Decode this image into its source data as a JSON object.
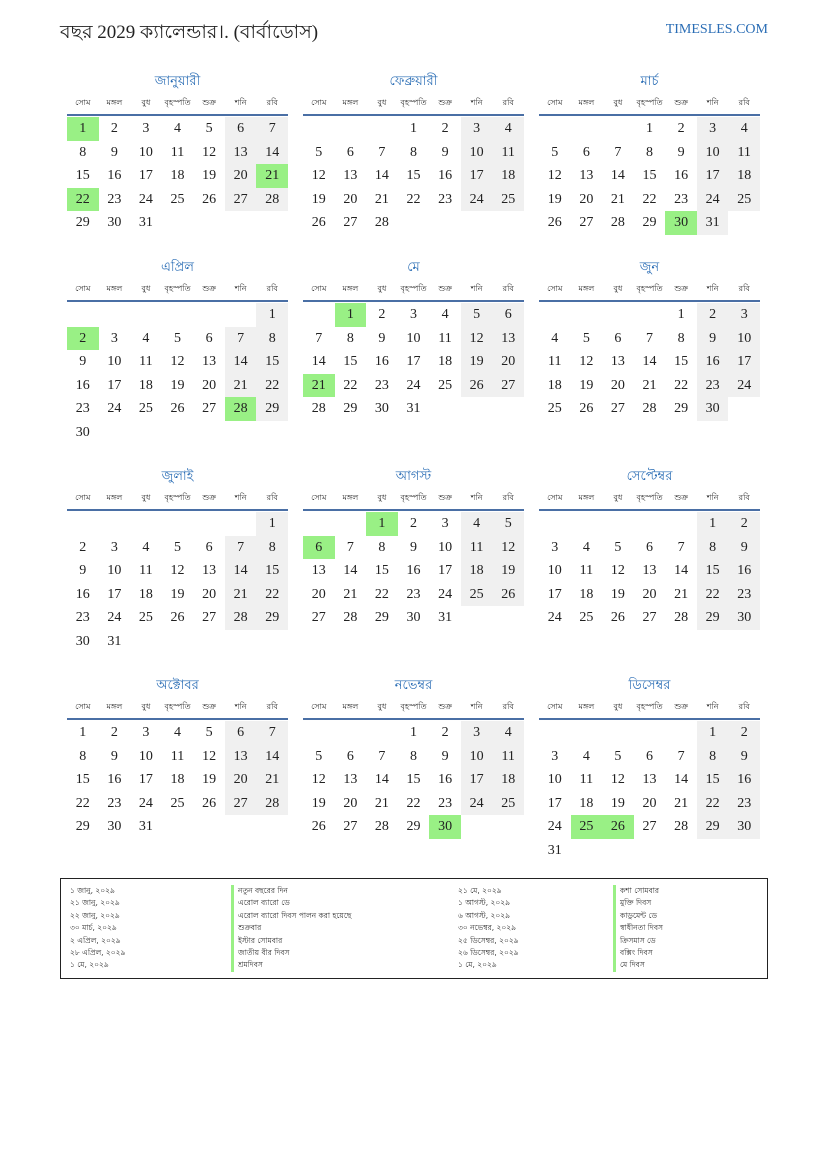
{
  "header": {
    "title": "বছর 2029 ক্যালেন্ডার।. (বার্বাডোস)",
    "site": "TIMESLES.COM"
  },
  "year": 2029,
  "weekdays": [
    "সোম",
    "মঙ্গল",
    "বুধ",
    "বৃহস্পতি",
    "শুক্র",
    "শনি",
    "রবি"
  ],
  "months": [
    "জানুয়ারী",
    "ফেব্রুয়ারী",
    "মার্চ",
    "এপ্রিল",
    "মে",
    "জুন",
    "জুলাই",
    "আগস্ট",
    "সেপ্টেম্বর",
    "অক্টোবর",
    "নভেম্বর",
    "ডিসেম্বর"
  ],
  "colors": {
    "accent": "#2a6db5",
    "holiday": "#99f085",
    "weekend": "#f0f0f0"
  },
  "holiday_days": {
    "1": [
      1,
      21,
      22
    ],
    "3": [
      30
    ],
    "4": [
      2,
      28
    ],
    "5": [
      1,
      21
    ],
    "8": [
      1,
      6
    ],
    "11": [
      30
    ],
    "12": [
      25,
      26
    ]
  },
  "holidays": [
    {
      "date": "১ জানু, ২০২৯",
      "name": "নতুন বছরের দিন"
    },
    {
      "date": "২১ জানু, ২০২৯",
      "name": "এরোল ব্যারো ডে"
    },
    {
      "date": "২২ জানু, ২০২৯",
      "name": "এরোল ব্যারো দিবস পালন করা হয়েছে"
    },
    {
      "date": "৩০ মার্চ, ২০২৯",
      "name": "শুক্রবার"
    },
    {
      "date": "২ এপ্রিল, ২০২৯",
      "name": "ইস্টার সোমবার"
    },
    {
      "date": "২৮ এপ্রিল, ২০২৯",
      "name": "জাতীয় বীর দিবস"
    },
    {
      "date": "১ মে, ২০২৯",
      "name": "শ্রমদিবস"
    },
    {
      "date": "২১ মে, ২০২৯",
      "name": "কশা সোমবার"
    },
    {
      "date": "১ আগস্ট, ২০২৯",
      "name": "মুক্তি দিবস"
    },
    {
      "date": "৬ আগস্ট, ২০২৯",
      "name": "কাডুমেন্ট ডে"
    },
    {
      "date": "৩০ নভেম্বর, ২০২৯",
      "name": "স্বাধীনতা দিবস"
    },
    {
      "date": "২৫ ডিসেম্বর, ২০২৯",
      "name": "ক্রিসমাস ডে"
    },
    {
      "date": "২৬ ডিসেম্বর, ২০২৯",
      "name": "বক্সিং দিবস"
    },
    {
      "date": "১ মে, ২০২৯",
      "name": "মে দিবস"
    }
  ]
}
